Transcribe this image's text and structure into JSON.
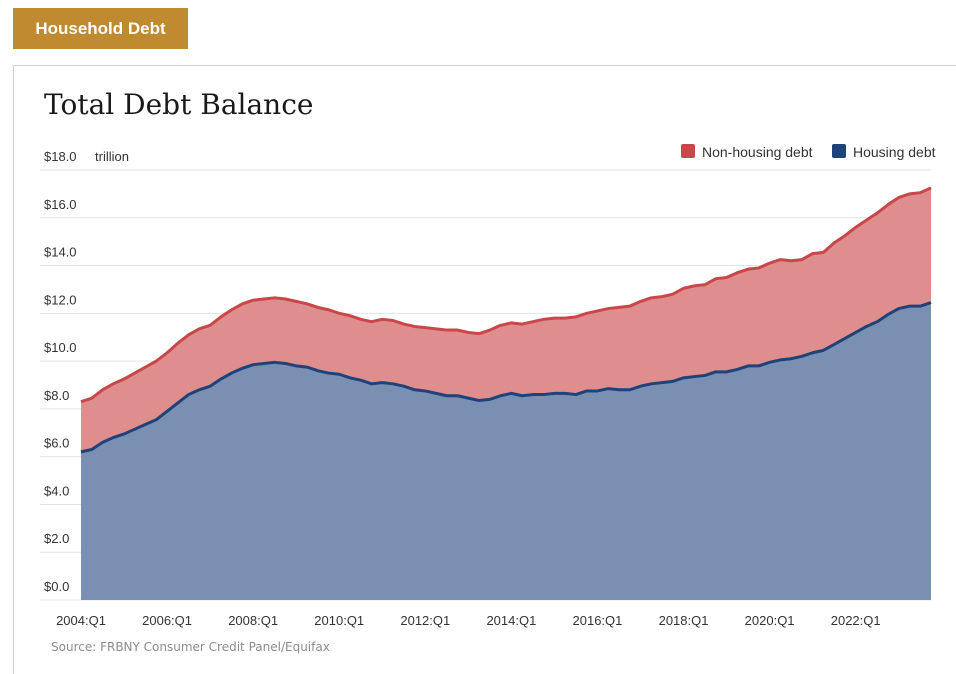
{
  "header": {
    "tag_label": "Household Debt"
  },
  "source": "Source: FRBNY Consumer Credit Panel/Equifax",
  "colors": {
    "tag": "#bf8a30",
    "non_housing": "#c9464a",
    "non_housing_fill": "#de8e8c",
    "housing": "#1f4379",
    "housing_fill": "#7a90b3"
  },
  "chart_data": {
    "type": "area",
    "title": "Total Debt Balance",
    "ylabel": "",
    "xlabel": "",
    "unit_label": "trillion",
    "stacked": true,
    "ylim": [
      0,
      18
    ],
    "yticks": [
      "$0.0",
      "$2.0",
      "$4.0",
      "$6.0",
      "$8.0",
      "$10.0",
      "$12.0",
      "$14.0",
      "$16.0",
      "$18.0"
    ],
    "xticks": [
      "2004:Q1",
      "2006:Q1",
      "2008:Q1",
      "2010:Q1",
      "2012:Q1",
      "2014:Q1",
      "2016:Q1",
      "2018:Q1",
      "2020:Q1",
      "2022:Q1"
    ],
    "legend_position": "top-right",
    "grid": true,
    "x_start": "2004:Q1",
    "series": [
      {
        "name": "Housing debt",
        "values": [
          6.2,
          6.3,
          6.6,
          6.8,
          6.95,
          7.15,
          7.35,
          7.55,
          7.9,
          8.25,
          8.6,
          8.8,
          8.95,
          9.25,
          9.5,
          9.7,
          9.85,
          9.9,
          9.95,
          9.9,
          9.8,
          9.75,
          9.6,
          9.5,
          9.45,
          9.3,
          9.2,
          9.05,
          9.1,
          9.05,
          8.95,
          8.8,
          8.75,
          8.65,
          8.55,
          8.55,
          8.45,
          8.35,
          8.4,
          8.55,
          8.65,
          8.55,
          8.6,
          8.6,
          8.65,
          8.65,
          8.6,
          8.75,
          8.75,
          8.85,
          8.8,
          8.8,
          8.95,
          9.05,
          9.1,
          9.15,
          9.3,
          9.35,
          9.4,
          9.55,
          9.55,
          9.65,
          9.8,
          9.8,
          9.95,
          10.05,
          10.1,
          10.2,
          10.35,
          10.45,
          10.7,
          10.95,
          11.2,
          11.45,
          11.65,
          11.95,
          12.2,
          12.3,
          12.3,
          12.45
        ]
      },
      {
        "name": "Non-housing debt",
        "values": [
          2.1,
          2.15,
          2.2,
          2.25,
          2.3,
          2.35,
          2.4,
          2.45,
          2.45,
          2.5,
          2.5,
          2.55,
          2.55,
          2.6,
          2.65,
          2.7,
          2.7,
          2.7,
          2.7,
          2.7,
          2.7,
          2.65,
          2.65,
          2.65,
          2.55,
          2.6,
          2.55,
          2.6,
          2.65,
          2.65,
          2.6,
          2.65,
          2.65,
          2.7,
          2.75,
          2.75,
          2.75,
          2.8,
          2.9,
          2.95,
          2.95,
          3.0,
          3.05,
          3.15,
          3.15,
          3.15,
          3.25,
          3.25,
          3.35,
          3.35,
          3.45,
          3.5,
          3.55,
          3.6,
          3.6,
          3.65,
          3.75,
          3.8,
          3.8,
          3.9,
          3.95,
          4.05,
          4.05,
          4.1,
          4.15,
          4.2,
          4.1,
          4.05,
          4.15,
          4.1,
          4.25,
          4.3,
          4.4,
          4.45,
          4.55,
          4.6,
          4.65,
          4.7,
          4.75,
          4.8
        ]
      }
    ]
  }
}
